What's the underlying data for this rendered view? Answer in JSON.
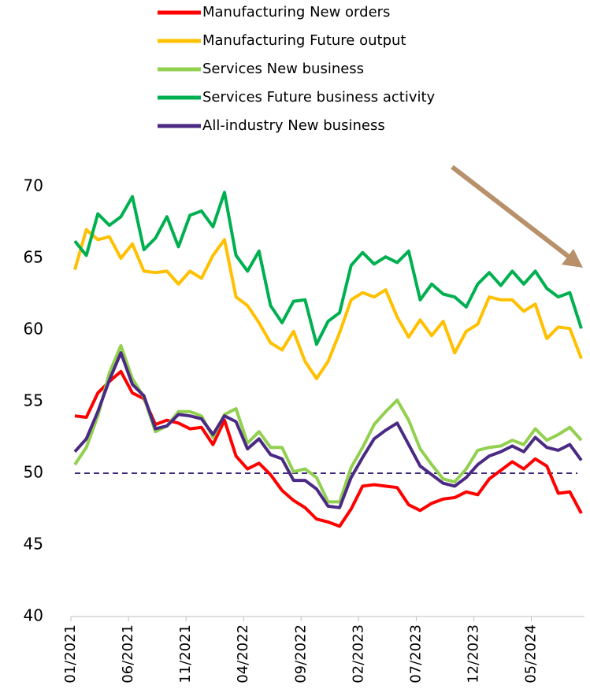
{
  "chart_data": {
    "type": "line",
    "categories": [
      "01/2021",
      null,
      null,
      null,
      null,
      "06/2021",
      null,
      null,
      null,
      null,
      "11/2021",
      null,
      null,
      null,
      null,
      "04/2022",
      null,
      null,
      null,
      null,
      "09/2022",
      null,
      null,
      null,
      null,
      "02/2023",
      null,
      null,
      null,
      null,
      "07/2023",
      null,
      null,
      null,
      null,
      "12/2023",
      null,
      null,
      null,
      null,
      "05/2024",
      null,
      null,
      null,
      null
    ],
    "series": [
      {
        "name": "Manufacturing New orders",
        "color": "#ff0000",
        "values": [
          54.0,
          53.9,
          55.6,
          56.4,
          57.1,
          55.6,
          55.2,
          53.4,
          53.7,
          53.5,
          53.1,
          53.2,
          52.0,
          53.7,
          51.2,
          50.3,
          50.7,
          49.9,
          48.8,
          48.1,
          47.6,
          46.8,
          46.6,
          46.3,
          47.5,
          49.1,
          49.2,
          49.1,
          49.0,
          47.8,
          47.4,
          47.9,
          48.2,
          48.3,
          48.7,
          48.5,
          49.6,
          50.2,
          50.8,
          50.3,
          51.0,
          50.5,
          48.6,
          48.7,
          47.2
        ]
      },
      {
        "name": "Manufacturing Future output",
        "color": "#ffc000",
        "values": [
          64.2,
          67.0,
          66.3,
          66.5,
          65.0,
          66.0,
          64.1,
          64.0,
          64.1,
          63.2,
          64.1,
          63.6,
          65.2,
          66.3,
          62.3,
          61.7,
          60.5,
          59.1,
          58.6,
          59.9,
          57.8,
          56.6,
          57.8,
          59.8,
          62.1,
          62.6,
          62.3,
          62.8,
          60.9,
          59.5,
          60.7,
          59.6,
          60.6,
          58.4,
          59.9,
          60.4,
          62.3,
          62.1,
          62.1,
          61.3,
          61.8,
          59.4,
          60.2,
          60.1,
          58.0
        ]
      },
      {
        "name": "Services New business",
        "color": "#92d050",
        "values": [
          50.6,
          51.8,
          54.0,
          57.0,
          58.9,
          56.6,
          55.3,
          52.9,
          53.3,
          54.3,
          54.3,
          54.0,
          52.5,
          54.1,
          54.5,
          52.1,
          52.9,
          51.8,
          51.8,
          50.1,
          50.3,
          49.7,
          48.0,
          48.0,
          50.4,
          51.8,
          53.4,
          54.3,
          55.1,
          53.7,
          51.7,
          50.6,
          49.6,
          49.4,
          50.3,
          51.6,
          51.8,
          51.9,
          52.3,
          52.0,
          53.1,
          52.3,
          52.7,
          53.2,
          52.3
        ]
      },
      {
        "name": "Services Future business activity",
        "color": "#00b050",
        "values": [
          66.2,
          65.2,
          68.1,
          67.3,
          67.9,
          69.3,
          65.6,
          66.4,
          67.9,
          65.8,
          68.0,
          68.3,
          67.2,
          69.6,
          65.2,
          64.1,
          65.5,
          61.7,
          60.5,
          62.0,
          62.1,
          59.0,
          60.6,
          61.2,
          64.5,
          65.4,
          64.6,
          65.1,
          64.7,
          65.5,
          62.1,
          63.2,
          62.5,
          62.3,
          61.6,
          63.2,
          64.0,
          63.1,
          64.1,
          63.2,
          64.1,
          62.9,
          62.3,
          62.6,
          60.1
        ]
      },
      {
        "name": "All-industry New business",
        "color": "#4b2a84",
        "values": [
          51.5,
          52.4,
          54.3,
          56.5,
          58.4,
          56.2,
          55.4,
          53.1,
          53.3,
          54.1,
          54.0,
          53.8,
          52.7,
          54.0,
          53.6,
          51.7,
          52.4,
          51.3,
          51.0,
          49.5,
          49.5,
          48.9,
          47.7,
          47.6,
          49.7,
          51.1,
          52.4,
          53.0,
          53.5,
          52.0,
          50.5,
          49.9,
          49.3,
          49.1,
          49.7,
          50.6,
          51.2,
          51.5,
          51.9,
          51.5,
          52.5,
          51.8,
          51.6,
          52.0,
          50.9
        ]
      }
    ],
    "ylim": [
      40,
      70
    ],
    "yticks": [
      40,
      45,
      50,
      55,
      60,
      65,
      70
    ],
    "reference_line": 50,
    "reference_color": "#3f2a7a"
  }
}
